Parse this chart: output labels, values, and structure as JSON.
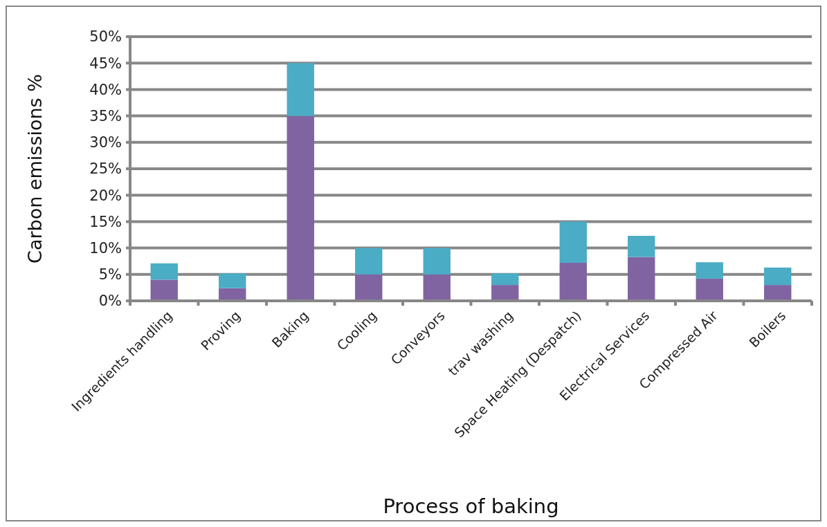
{
  "chart_data": {
    "type": "bar",
    "stacked": true,
    "xlabel": "Process of baking",
    "ylabel": "Carbon emissions %",
    "categories": [
      "Ingredients handling",
      "Proving",
      "Baking",
      "Cooling",
      "Conveyors",
      "trav washing",
      "Space Heating (Despatch)",
      "Electrical Services",
      "Compressed Air",
      "Boilers"
    ],
    "series": [
      {
        "color": "#8064a2",
        "values": [
          4,
          2.4,
          35,
          5,
          5,
          3,
          7.2,
          8.3,
          4.2,
          3
        ]
      },
      {
        "color": "#4bacc6",
        "values": [
          3.1,
          2.8,
          10,
          5,
          5,
          2.2,
          7.8,
          4,
          3.1,
          3.3
        ]
      }
    ],
    "ylim": [
      0,
      50
    ],
    "yticks": [
      {
        "value": 0,
        "label": "0%"
      },
      {
        "value": 5,
        "label": "5%"
      },
      {
        "value": 10,
        "label": "10%"
      },
      {
        "value": 15,
        "label": "15%"
      },
      {
        "value": 20,
        "label": "20%"
      },
      {
        "value": 25,
        "label": "25%"
      },
      {
        "value": 30,
        "label": "30%"
      },
      {
        "value": 35,
        "label": "35%"
      },
      {
        "value": 40,
        "label": "40%"
      },
      {
        "value": 45,
        "label": "45%"
      },
      {
        "value": 50,
        "label": "50%"
      }
    ],
    "grid": "y"
  }
}
